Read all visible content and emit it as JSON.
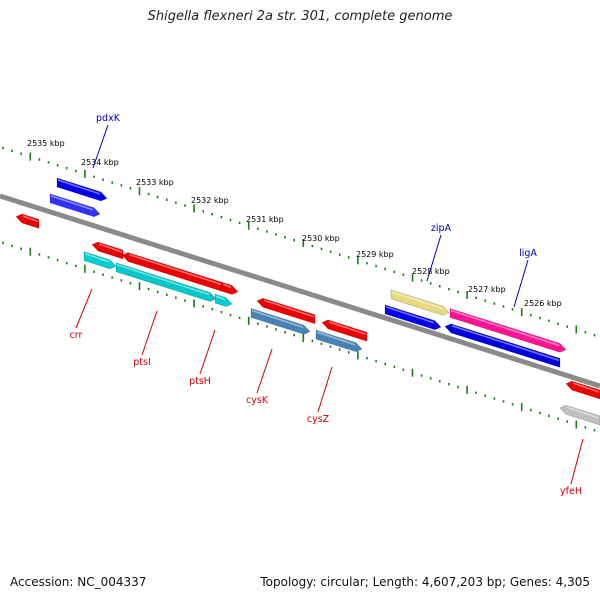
{
  "title": "Shigella flexneri 2a str. 301, complete genome",
  "footer": {
    "accession": "Accession: NC_004337",
    "summary": "Topology: circular; Length: 4,607,203 bp; Genes: 4,305"
  },
  "colors": {
    "backbone": "#888888",
    "tick": "#1a7a1a",
    "label_top": "#0000bb",
    "label_bottom": "#cc0000"
  },
  "scale_labels": [
    "2535 kbp",
    "2534 kbp",
    "2533 kbp",
    "2532 kbp",
    "2531 kbp",
    "2530 kbp",
    "2529 kbp",
    "2528 kbp",
    "2527 kbp",
    "2526 kbp"
  ],
  "genes_labeled": [
    {
      "name": "pdxK",
      "strand": "top",
      "color": "#0000ee"
    },
    {
      "name": "zipA",
      "strand": "top",
      "color": "#f0e090"
    },
    {
      "name": "ligA",
      "strand": "top",
      "color": "#ff1493"
    },
    {
      "name": "crr",
      "strand": "bottom",
      "color": "#00ced1"
    },
    {
      "name": "ptsI",
      "strand": "bottom",
      "color": "#00ced1"
    },
    {
      "name": "ptsH",
      "strand": "bottom",
      "color": "#00ced1"
    },
    {
      "name": "cysK",
      "strand": "bottom",
      "color": "#4682b4"
    },
    {
      "name": "cysZ",
      "strand": "bottom",
      "color": "#4682b4"
    },
    {
      "name": "yfeH",
      "strand": "bottom",
      "color": "#c0c0c0"
    }
  ]
}
